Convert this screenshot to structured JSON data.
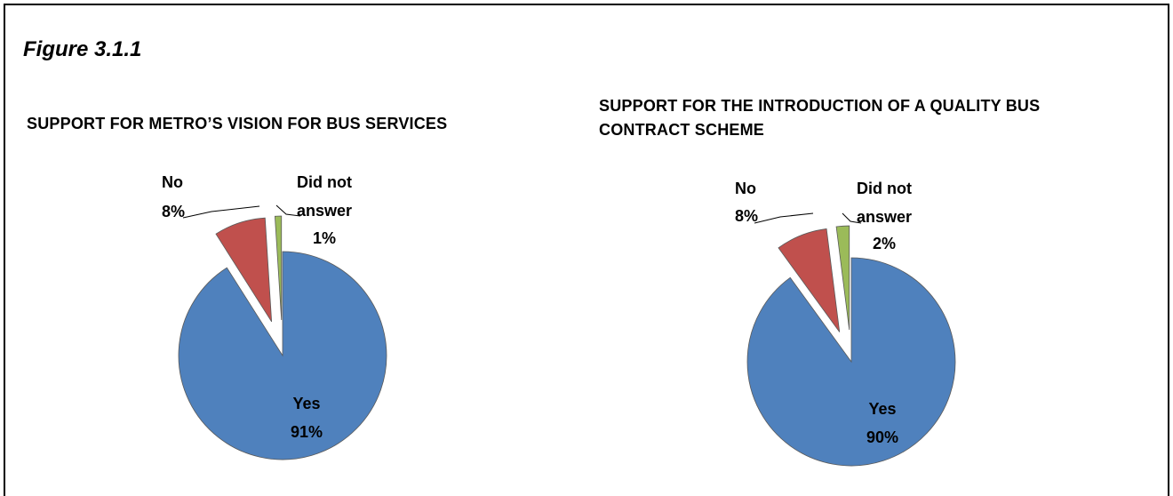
{
  "figure_label": "Figure 3.1.1",
  "chart_data": [
    {
      "type": "pie",
      "title": "SUPPORT FOR METRO’S VISION FOR BUS SERVICES",
      "slices": [
        {
          "label": "Yes",
          "value": 91,
          "value_label": "91%",
          "color": "#4f81bd"
        },
        {
          "label": "No",
          "value": 8,
          "value_label": "8%",
          "color": "#c0504d"
        },
        {
          "label_lines": [
            "Did not",
            "answer"
          ],
          "value": 1,
          "value_label": "1%",
          "color": "#9bbb59"
        }
      ]
    },
    {
      "type": "pie",
      "title_lines": [
        "SUPPORT FOR THE INTRODUCTION OF A QUALITY BUS",
        "CONTRACT SCHEME"
      ],
      "slices": [
        {
          "label": "Yes",
          "value": 90,
          "value_label": "90%",
          "color": "#4f81bd"
        },
        {
          "label": "No",
          "value": 8,
          "value_label": "8%",
          "color": "#c0504d"
        },
        {
          "label_lines": [
            "Did not",
            "answer"
          ],
          "value": 2,
          "value_label": "2%",
          "color": "#9bbb59"
        }
      ]
    }
  ]
}
